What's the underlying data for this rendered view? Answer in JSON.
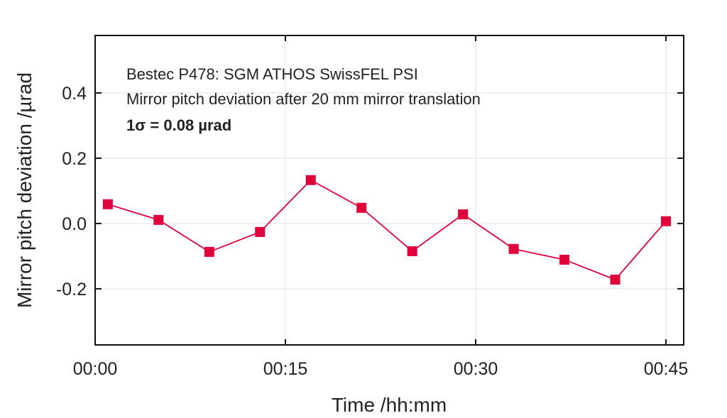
{
  "chart_data": {
    "type": "line",
    "title": "",
    "annotations": [
      "Bestec P478: SGM ATHOS SwissFEL PSI",
      "Mirror pitch deviation after 20 mm mirror translation",
      "1σ = 0.08 µrad"
    ],
    "xlabel": "Time /hh:mm",
    "ylabel": "Mirror pitch deviation /µrad",
    "xlim": [
      0,
      46.4
    ],
    "ylim": [
      -0.372,
      0.576
    ],
    "xticks": [
      0,
      15,
      30,
      45
    ],
    "xtick_labels": [
      "00:00",
      "00:15",
      "00:30",
      "00:45"
    ],
    "yticks": [
      0.4,
      0.2,
      0.0,
      -0.2
    ],
    "ytick_labels": [
      "0.4",
      "0.2",
      "0.0",
      "-0.2"
    ],
    "grid": true,
    "series": [
      {
        "name": "Mirror pitch deviation",
        "color": "#e0003c",
        "marker": "square",
        "x": [
          1,
          5,
          9,
          13,
          17,
          21,
          25,
          29,
          33,
          37,
          41,
          45
        ],
        "y": [
          0.059,
          0.011,
          -0.087,
          -0.026,
          0.133,
          0.048,
          -0.085,
          0.028,
          -0.078,
          -0.111,
          -0.172,
          0.007
        ]
      }
    ]
  }
}
